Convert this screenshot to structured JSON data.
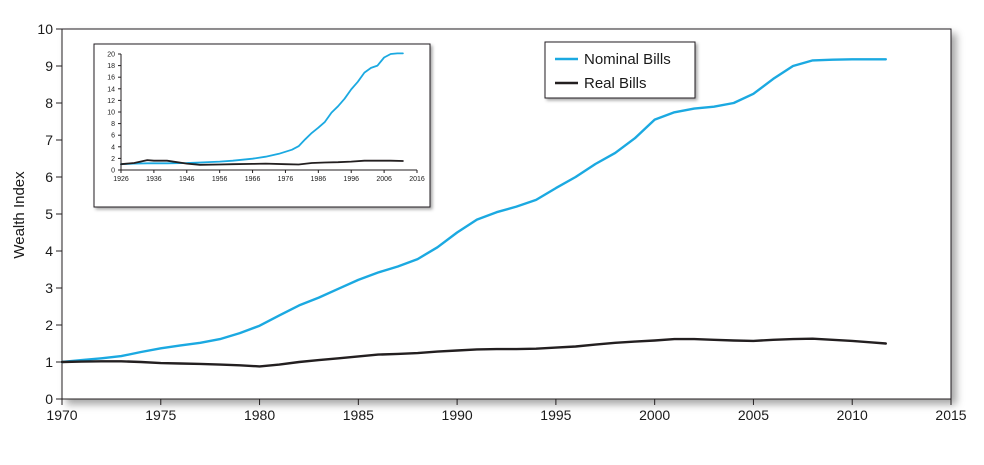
{
  "chart_data": [
    {
      "type": "line",
      "title": "",
      "xlabel": "",
      "ylabel": "Wealth Index",
      "xlim": [
        1970,
        2015
      ],
      "ylim": [
        0,
        10
      ],
      "xticks": [
        1970,
        1975,
        1980,
        1985,
        1990,
        1995,
        2000,
        2005,
        2010,
        2015
      ],
      "yticks": [
        0,
        1,
        2,
        3,
        4,
        5,
        6,
        7,
        8,
        9,
        10
      ],
      "grid": false,
      "legend_position": "top-right",
      "series": [
        {
          "name": "Nominal Bills",
          "color": "#1ba9e1",
          "x": [
            1970,
            1971,
            1972,
            1973,
            1974,
            1975,
            1976,
            1977,
            1978,
            1979,
            1980,
            1981,
            1982,
            1983,
            1984,
            1985,
            1986,
            1987,
            1988,
            1989,
            1990,
            1991,
            1992,
            1993,
            1994,
            1995,
            1996,
            1997,
            1998,
            1999,
            2000,
            2001,
            2002,
            2003,
            2004,
            2005,
            2006,
            2007,
            2008,
            2009,
            2010,
            2011,
            2011.7
          ],
          "values": [
            1.0,
            1.05,
            1.1,
            1.16,
            1.27,
            1.37,
            1.45,
            1.52,
            1.62,
            1.78,
            1.98,
            2.26,
            2.53,
            2.74,
            2.98,
            3.22,
            3.42,
            3.58,
            3.78,
            4.1,
            4.5,
            4.85,
            5.05,
            5.2,
            5.38,
            5.7,
            6.0,
            6.35,
            6.65,
            7.05,
            7.55,
            7.75,
            7.85,
            7.9,
            8.0,
            8.25,
            8.65,
            9.0,
            9.15,
            9.17,
            9.18,
            9.18,
            9.18
          ]
        },
        {
          "name": "Real Bills",
          "color": "#231f20",
          "x": [
            1970,
            1971,
            1972,
            1973,
            1974,
            1975,
            1976,
            1977,
            1978,
            1979,
            1980,
            1981,
            1982,
            1983,
            1984,
            1985,
            1986,
            1987,
            1988,
            1989,
            1990,
            1991,
            1992,
            1993,
            1994,
            1995,
            1996,
            1997,
            1998,
            1999,
            2000,
            2001,
            2002,
            2003,
            2004,
            2005,
            2006,
            2007,
            2008,
            2009,
            2010,
            2011,
            2011.7
          ],
          "values": [
            1.0,
            1.01,
            1.02,
            1.02,
            1.0,
            0.97,
            0.96,
            0.95,
            0.93,
            0.91,
            0.88,
            0.93,
            1.0,
            1.05,
            1.1,
            1.15,
            1.2,
            1.22,
            1.24,
            1.28,
            1.31,
            1.34,
            1.35,
            1.35,
            1.36,
            1.39,
            1.42,
            1.47,
            1.52,
            1.55,
            1.58,
            1.62,
            1.62,
            1.6,
            1.58,
            1.57,
            1.6,
            1.62,
            1.63,
            1.6,
            1.57,
            1.53,
            1.5
          ]
        }
      ]
    },
    {
      "type": "line",
      "title": "",
      "xlabel": "",
      "ylabel": "",
      "xlim": [
        1926,
        2016
      ],
      "ylim": [
        0,
        20
      ],
      "xticks": [
        1926,
        1936,
        1946,
        1956,
        1966,
        1976,
        1986,
        1996,
        2006,
        2016
      ],
      "yticks": [
        0,
        2,
        4,
        6,
        8,
        10,
        12,
        14,
        16,
        18,
        20
      ],
      "grid": false,
      "legend_position": "none",
      "series": [
        {
          "name": "",
          "color": "#1ba9e1",
          "x": [
            1926,
            1930,
            1934,
            1940,
            1946,
            1950,
            1956,
            1960,
            1966,
            1970,
            1974,
            1978,
            1980,
            1982,
            1984,
            1986,
            1988,
            1990,
            1992,
            1994,
            1996,
            1998,
            2000,
            2002,
            2004,
            2006,
            2008,
            2010,
            2011.7
          ],
          "values": [
            1.0,
            1.1,
            1.15,
            1.15,
            1.2,
            1.3,
            1.45,
            1.6,
            1.95,
            2.3,
            2.8,
            3.5,
            4.1,
            5.3,
            6.4,
            7.3,
            8.3,
            9.9,
            11.0,
            12.3,
            13.9,
            15.2,
            16.8,
            17.6,
            18.0,
            19.4,
            20.0,
            20.1,
            20.1
          ]
        },
        {
          "name": "",
          "color": "#231f20",
          "x": [
            1926,
            1930,
            1934,
            1936,
            1940,
            1946,
            1950,
            1956,
            1960,
            1966,
            1970,
            1976,
            1980,
            1984,
            1988,
            1992,
            1996,
            2000,
            2004,
            2008,
            2011.7
          ],
          "values": [
            1.0,
            1.2,
            1.7,
            1.6,
            1.6,
            1.1,
            0.9,
            0.95,
            1.0,
            1.05,
            1.1,
            1.0,
            0.95,
            1.2,
            1.3,
            1.35,
            1.45,
            1.6,
            1.6,
            1.6,
            1.55
          ]
        }
      ]
    }
  ]
}
